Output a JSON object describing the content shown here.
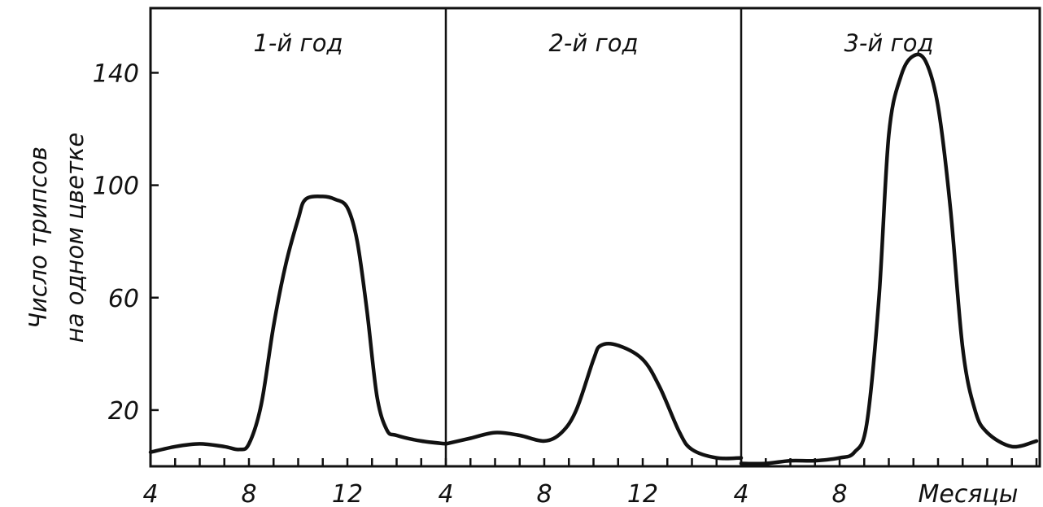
{
  "chart_data": {
    "type": "line",
    "ylabel_lines": [
      "Число трипсов",
      "на одном цветке"
    ],
    "xlabel": "Месяцы",
    "ylim": [
      0,
      163
    ],
    "y_ticks": [
      20,
      60,
      100,
      140
    ],
    "grid": false,
    "panels": [
      {
        "title": "1-й год",
        "x_tick_labels": [
          "4",
          "8",
          "12"
        ],
        "series": [
          {
            "x": [
              4,
              5,
              6,
              7,
              7.6,
              8,
              8.5,
              9,
              9.5,
              10,
              10.3,
              11,
              11.5,
              12,
              12.4,
              12.8,
              13.2,
              13.6,
              14,
              15,
              16
            ],
            "y": [
              5,
              7,
              8,
              7,
              6,
              8,
              22,
              50,
              72,
              88,
              95,
              96,
              95,
              92,
              80,
              55,
              25,
              13,
              11,
              9,
              8
            ]
          }
        ]
      },
      {
        "title": "2-й год",
        "x_tick_labels": [
          "4",
          "8",
          "12"
        ],
        "series": [
          {
            "x": [
              4,
              5,
              6,
              7,
              8,
              8.7,
              9.3,
              10,
              10.3,
              11,
              12,
              12.7,
              13.5,
              14,
              15,
              16
            ],
            "y": [
              8,
              10,
              12,
              11,
              9,
              12,
              20,
              38,
              43,
              43,
              38,
              28,
              12,
              6,
              3,
              3
            ]
          }
        ]
      },
      {
        "title": "3-й год",
        "x_tick_labels": [
          "4",
          "8"
        ],
        "series": [
          {
            "x": [
              4,
              5,
              6,
              7,
              8,
              8.6,
              9.1,
              9.6,
              10,
              10.5,
              11,
              11.5,
              12,
              12.5,
              13,
              13.5,
              14,
              15,
              16
            ],
            "y": [
              1,
              1,
              2,
              2,
              3,
              5,
              15,
              60,
              118,
              139,
              146,
              144,
              128,
              92,
              42,
              20,
              12,
              7,
              9
            ]
          }
        ]
      }
    ]
  }
}
